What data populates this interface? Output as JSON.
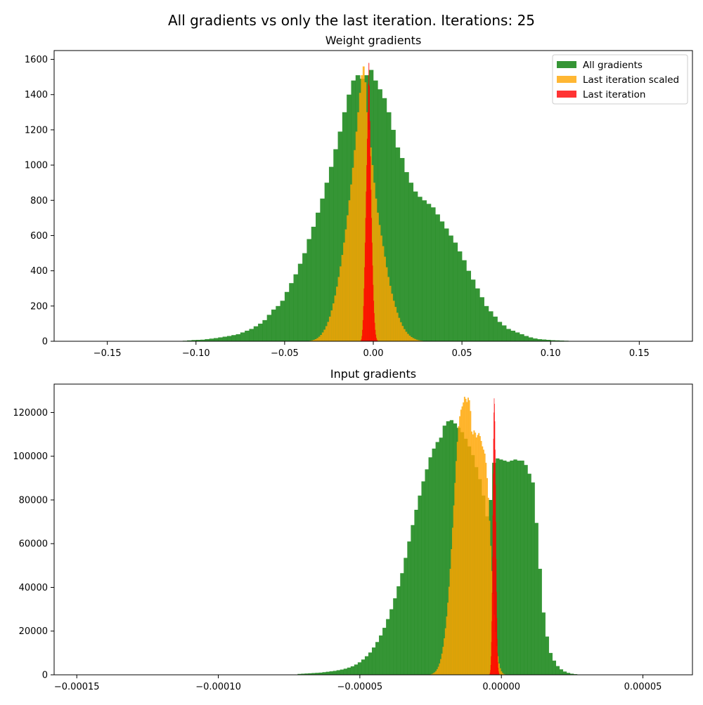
{
  "suptitle": "All gradients vs only the last iteration. Iterations: 25",
  "colors": {
    "all": "#1f8a1f",
    "scaled": "#ffa500",
    "last": "#ff0000"
  },
  "chart_data": [
    {
      "type": "bar",
      "title": "Weight gradients",
      "xlim": [
        -0.18,
        0.18
      ],
      "ylim": [
        0,
        1650
      ],
      "xticks": [
        -0.15,
        -0.1,
        -0.05,
        0.0,
        0.05,
        0.1,
        0.15
      ],
      "xtick_labels": [
        "−0.15",
        "−0.10",
        "−0.05",
        "0.00",
        "0.05",
        "0.10",
        "0.15"
      ],
      "yticks": [
        0,
        200,
        400,
        600,
        800,
        1000,
        1200,
        1400,
        1600
      ],
      "ytick_labels": [
        "0",
        "200",
        "400",
        "600",
        "800",
        "1000",
        "1200",
        "1400",
        "1600"
      ],
      "legend": {
        "placement": "top-right",
        "labels": [
          "All gradients",
          "Last iteration scaled",
          "Last iteration"
        ]
      },
      "series": [
        {
          "name": "All gradients",
          "color": "all",
          "x_start": -0.13,
          "bin_width": 0.0025,
          "values": [
            2,
            1,
            1,
            2,
            2,
            2,
            1,
            2,
            2,
            3,
            5,
            7,
            8,
            9,
            12,
            15,
            18,
            22,
            26,
            30,
            35,
            40,
            50,
            60,
            70,
            85,
            100,
            120,
            150,
            180,
            200,
            230,
            280,
            330,
            380,
            440,
            500,
            580,
            650,
            730,
            810,
            900,
            990,
            1090,
            1190,
            1300,
            1400,
            1480,
            1510,
            1490,
            1510,
            1540,
            1480,
            1430,
            1380,
            1300,
            1200,
            1100,
            1040,
            960,
            900,
            850,
            820,
            800,
            780,
            760,
            720,
            680,
            640,
            600,
            560,
            510,
            460,
            400,
            350,
            300,
            250,
            200,
            170,
            140,
            110,
            90,
            70,
            60,
            50,
            40,
            30,
            22,
            16,
            12,
            10,
            8,
            6,
            5,
            4,
            3,
            2,
            1,
            1,
            1,
            1,
            1,
            1
          ]
        },
        {
          "name": "Last iteration scaled",
          "color": "scaled",
          "x_start": -0.036,
          "bin_width": 0.001,
          "values": [
            3,
            5,
            8,
            12,
            18,
            26,
            36,
            50,
            66,
            86,
            110,
            140,
            175,
            215,
            260,
            310,
            365,
            425,
            490,
            560,
            635,
            715,
            800,
            890,
            985,
            1085,
            1190,
            1300,
            1410,
            1510,
            1560,
            1470,
            1300,
            1200,
            1100,
            1000,
            900,
            810,
            730,
            660,
            600,
            540,
            480,
            420,
            365,
            315,
            270,
            230,
            195,
            162,
            133,
            108,
            87,
            69,
            54,
            42,
            32,
            24,
            18,
            13,
            9,
            6,
            4,
            3,
            2,
            1,
            1
          ]
        },
        {
          "name": "Last iteration",
          "color": "last",
          "x_start": -0.0072,
          "bin_width": 0.0003,
          "values": [
            4,
            12,
            30,
            65,
            120,
            200,
            300,
            420,
            560,
            700,
            850,
            1000,
            1150,
            1300,
            1460,
            1580,
            1450,
            1250,
            1050,
            860,
            700,
            560,
            430,
            320,
            230,
            160,
            105,
            65,
            38,
            20,
            10,
            5,
            2,
            1,
            1,
            1,
            1,
            1,
            1,
            1,
            1,
            1,
            1,
            1,
            1,
            1,
            1,
            1
          ]
        }
      ]
    },
    {
      "type": "bar",
      "title": "Input gradients",
      "xlim": [
        -0.000158,
        6.75e-05
      ],
      "ylim": [
        0,
        133000
      ],
      "xticks": [
        -0.00015,
        -0.0001,
        -5e-05,
        0.0,
        5e-05
      ],
      "xtick_labels": [
        "−0.00015",
        "−0.00010",
        "−0.00005",
        "0.00000",
        "0.00005"
      ],
      "yticks": [
        0,
        20000,
        40000,
        60000,
        80000,
        100000,
        120000
      ],
      "ytick_labels": [
        "0",
        "20000",
        "40000",
        "60000",
        "80000",
        "100000",
        "120000"
      ],
      "series": [
        {
          "name": "All gradients",
          "color": "all",
          "x_start": -7.2e-05,
          "bin_width": 1.25e-06,
          "values": [
            400,
            500,
            600,
            700,
            800,
            900,
            1000,
            1200,
            1400,
            1600,
            1800,
            2100,
            2400,
            2800,
            3300,
            3900,
            4700,
            5700,
            7000,
            8500,
            10200,
            12500,
            15000,
            18000,
            21500,
            25500,
            30000,
            35000,
            40500,
            46500,
            53500,
            61000,
            68500,
            75500,
            82000,
            88500,
            94000,
            99500,
            103500,
            106500,
            108500,
            114000,
            116000,
            116500,
            115000,
            113000,
            111000,
            108000,
            104500,
            100500,
            95000,
            89500,
            82000,
            72500,
            80000,
            97000,
            99000,
            98500,
            98000,
            97500,
            98000,
            98500,
            98000,
            98000,
            96000,
            92000,
            88000,
            69500,
            48500,
            28500,
            17500,
            10000,
            6500,
            4000,
            2500,
            1500,
            900,
            500,
            300,
            100
          ]
        },
        {
          "name": "Last iteration scaled",
          "color": "scaled",
          "x_start": -2.5e-05,
          "bin_width": 4.2e-07,
          "values": [
            300,
            500,
            800,
            1200,
            1800,
            2600,
            3700,
            5200,
            7200,
            9700,
            12800,
            16700,
            21300,
            26700,
            33000,
            40300,
            48500,
            57500,
            67300,
            77500,
            87800,
            97800,
            106600,
            113700,
            118300,
            121300,
            122800,
            124600,
            127200,
            126300,
            124800,
            126800,
            125600,
            120700,
            111300,
            110000,
            111800,
            110800,
            108600,
            109700,
            110600,
            109200,
            107000,
            104500,
            103000,
            101200,
            97000,
            90000,
            81000,
            70500,
            59000,
            47500,
            37000,
            27500,
            19600,
            13200,
            8500,
            5200,
            3000,
            1600,
            800,
            400,
            200,
            100
          ]
        },
        {
          "name": "Last iteration",
          "color": "last",
          "x_start": -4.2e-06,
          "bin_width": 1.2e-07,
          "values": [
            400,
            1000,
            2200,
            4500,
            8500,
            15000,
            24500,
            37500,
            54000,
            73000,
            92000,
            108000,
            120000,
            126500,
            124000,
            116000,
            103000,
            87000,
            70000,
            53000,
            38000,
            26000,
            16500,
            10000,
            5800,
            3200,
            1700,
            900,
            400,
            200,
            100
          ]
        }
      ]
    }
  ]
}
